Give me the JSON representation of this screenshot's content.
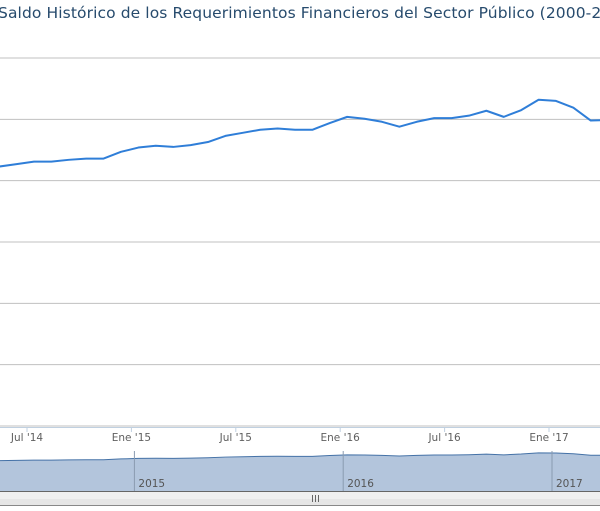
{
  "chart_data": {
    "type": "line",
    "title": "Saldo Histórico de los Requerimientos Financieros del Sector Público (2000-2",
    "xlabel": "",
    "ylabel": "",
    "ylim": [
      0,
      6
    ],
    "grid": true,
    "x_ticks": [
      {
        "m": 6,
        "label": "Jul '14"
      },
      {
        "m": 12,
        "label": "Ene '15"
      },
      {
        "m": 18,
        "label": "Jul '15"
      },
      {
        "m": 24,
        "label": "Ene '16"
      },
      {
        "m": 30,
        "label": "Jul '16"
      },
      {
        "m": 36,
        "label": "Ene '17"
      }
    ],
    "navigator_ticks": [
      {
        "m": 12,
        "label": "2015"
      },
      {
        "m": 24,
        "label": "2016"
      },
      {
        "m": 36,
        "label": "2017"
      }
    ],
    "x_start_month": 4.4,
    "values": [
      4.23,
      4.27,
      4.31,
      4.31,
      4.34,
      4.36,
      4.36,
      4.47,
      4.54,
      4.57,
      4.55,
      4.58,
      4.63,
      4.73,
      4.78,
      4.83,
      4.85,
      4.83,
      4.83,
      4.94,
      5.04,
      5.01,
      4.96,
      4.88,
      4.96,
      5.02,
      5.02,
      5.06,
      5.14,
      5.04,
      5.15,
      5.32,
      5.3,
      5.19,
      4.98,
      4.99
    ],
    "line_color": "#2f7ed8",
    "navigator_fill": "#b3c5dc",
    "navigator_line": "#4572a7"
  }
}
